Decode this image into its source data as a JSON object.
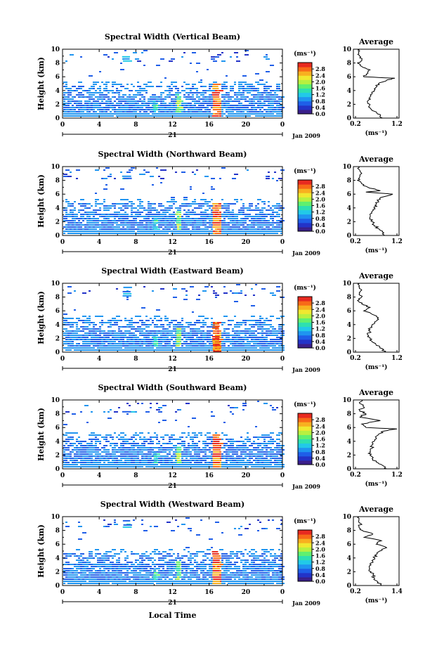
{
  "figure": {
    "xlabel": "Local Time",
    "time_ticks": [
      "0",
      "4",
      "8",
      "12",
      "16",
      "20",
      "0"
    ],
    "day_label": "21",
    "month_label": "Jan 2009",
    "height_label": "Height (km)",
    "height_ticks": [
      "0",
      "2",
      "4",
      "6",
      "8",
      "10"
    ],
    "unit_label": "(ms⁻¹)",
    "colorbar_ticks": [
      "0.0",
      "0.4",
      "0.8",
      "1.2",
      "1.6",
      "2.0",
      "2.4",
      "2.8"
    ],
    "average_title": "Average",
    "colors": {
      "scale": [
        "#3a1f8a",
        "#2333c8",
        "#1f5ee8",
        "#1f95f0",
        "#22c9e8",
        "#2ee0b0",
        "#60f070",
        "#b8f040",
        "#f0e830",
        "#f8b020",
        "#f86a18",
        "#e82a20"
      ],
      "white": "#ffffff",
      "line": "#000000"
    }
  },
  "chart_data": [
    {
      "type": "heatmap",
      "title": "Spectral Width (Vertical Beam)",
      "x_range_hours": [
        0,
        24
      ],
      "y_range_km": [
        0,
        10
      ],
      "colorbar_range": [
        0.0,
        3.2
      ],
      "features": [
        {
          "t_hours": [
            16.3,
            17.2
          ],
          "height_km": [
            0.2,
            5.0
          ],
          "value": "2.8+"
        },
        {
          "t_hours": [
            12.3,
            12.9
          ],
          "height_km": [
            1.0,
            3.5
          ],
          "value": "about 2.0"
        },
        {
          "t_hours": [
            9.8,
            10.3
          ],
          "height_km": [
            1.0,
            2.5
          ],
          "value": "about 1.6"
        },
        {
          "t_hours": [
            6.5,
            7.5
          ],
          "height_km": [
            8.2,
            9.0
          ],
          "value": "about 1.2"
        }
      ],
      "average_profile": {
        "title": "Average",
        "xlabel": "(ms⁻¹)",
        "x_ticks": [
          "0.2",
          "1.2"
        ],
        "x_range": [
          0.2,
          1.2
        ],
        "height_ticks": [
          "0",
          "2",
          "4",
          "6",
          "8",
          "10"
        ],
        "y_range_km": [
          0,
          10
        ],
        "height_km": [
          0.0,
          0.5,
          1.0,
          1.5,
          2.0,
          2.5,
          3.0,
          3.5,
          4.0,
          4.5,
          5.0,
          5.5,
          5.8,
          6.0,
          6.5,
          7.0,
          7.5,
          8.0,
          8.5,
          9.0,
          9.5,
          10.0
        ],
        "width_ms": [
          0.85,
          0.8,
          0.65,
          0.55,
          0.55,
          0.5,
          0.55,
          0.6,
          0.65,
          0.7,
          0.75,
          0.95,
          1.15,
          0.4,
          0.5,
          0.55,
          0.35,
          0.25,
          0.35,
          0.3,
          0.28,
          0.3
        ]
      }
    },
    {
      "type": "heatmap",
      "title": "Spectral Width (Northward Beam)",
      "x_range_hours": [
        0,
        24
      ],
      "y_range_km": [
        0,
        10
      ],
      "colorbar_range": [
        0.0,
        3.2
      ],
      "features": [
        {
          "t_hours": [
            16.3,
            17.2
          ],
          "height_km": [
            0.2,
            5.0
          ],
          "value": "2.8+"
        },
        {
          "t_hours": [
            12.3,
            12.9
          ],
          "height_km": [
            1.0,
            3.5
          ],
          "value": "about 2.0"
        },
        {
          "t_hours": [
            9.8,
            10.3
          ],
          "height_km": [
            1.0,
            2.5
          ],
          "value": "about 1.6"
        },
        {
          "t_hours": [
            6.5,
            7.5
          ],
          "height_km": [
            8.2,
            9.0
          ],
          "value": "about 1.2"
        }
      ],
      "average_profile": {
        "title": "Average",
        "xlabel": "(ms⁻¹)",
        "x_ticks": [
          "0.2",
          "1.2"
        ],
        "x_range": [
          0.2,
          1.2
        ],
        "height_ticks": [
          "0",
          "2",
          "4",
          "6",
          "8",
          "10"
        ],
        "y_range_km": [
          0,
          10
        ],
        "height_km": [
          0.0,
          0.5,
          1.0,
          1.5,
          2.0,
          2.5,
          3.0,
          3.5,
          4.0,
          4.5,
          5.0,
          5.5,
          6.0,
          6.3,
          6.5,
          7.0,
          7.5,
          8.0,
          8.5,
          9.0,
          9.5,
          10.0
        ],
        "width_ms": [
          0.9,
          0.85,
          0.75,
          0.65,
          0.6,
          0.55,
          0.55,
          0.6,
          0.65,
          0.7,
          0.75,
          0.8,
          1.1,
          0.45,
          0.8,
          0.5,
          0.35,
          0.25,
          0.3,
          0.35,
          0.3,
          0.28
        ]
      }
    },
    {
      "type": "heatmap",
      "title": "Spectral Width (Eastward Beam)",
      "x_range_hours": [
        0,
        24
      ],
      "y_range_km": [
        0,
        10
      ],
      "colorbar_range": [
        0.0,
        3.2
      ],
      "features": [
        {
          "t_hours": [
            16.3,
            17.2
          ],
          "height_km": [
            0.2,
            4.5
          ],
          "value": "2.8+"
        },
        {
          "t_hours": [
            12.3,
            12.9
          ],
          "height_km": [
            1.0,
            3.5
          ],
          "value": "about 2.0"
        },
        {
          "t_hours": [
            9.8,
            10.3
          ],
          "height_km": [
            1.0,
            2.5
          ],
          "value": "about 1.6"
        },
        {
          "t_hours": [
            6.5,
            7.5
          ],
          "height_km": [
            8.2,
            9.5
          ],
          "value": "about 1.2"
        }
      ],
      "average_profile": {
        "title": "Average",
        "xlabel": "(ms⁻¹)",
        "x_ticks": [
          "0.2",
          "1.2"
        ],
        "x_range": [
          0.2,
          1.2
        ],
        "height_ticks": [
          "0",
          "2",
          "4",
          "6",
          "8",
          "10"
        ],
        "y_range_km": [
          0,
          10
        ],
        "height_km": [
          0.0,
          0.5,
          1.0,
          1.5,
          2.0,
          2.5,
          3.0,
          3.5,
          4.0,
          4.5,
          5.0,
          5.5,
          6.0,
          6.5,
          7.0,
          7.5,
          8.0,
          8.5,
          9.0,
          9.5,
          10.0
        ],
        "width_ms": [
          0.9,
          0.85,
          0.7,
          0.6,
          0.55,
          0.5,
          0.55,
          0.55,
          0.6,
          0.7,
          0.75,
          0.6,
          0.4,
          0.55,
          0.35,
          0.25,
          0.35,
          0.3,
          0.35,
          0.28,
          0.3
        ]
      }
    },
    {
      "type": "heatmap",
      "title": "Spectral Width (Southward Beam)",
      "x_range_hours": [
        0,
        24
      ],
      "y_range_km": [
        0,
        10
      ],
      "colorbar_range": [
        0.0,
        3.2
      ],
      "features": [
        {
          "t_hours": [
            16.3,
            17.2
          ],
          "height_km": [
            0.2,
            5.0
          ],
          "value": "2.8+"
        },
        {
          "t_hours": [
            12.3,
            12.9
          ],
          "height_km": [
            1.0,
            3.5
          ],
          "value": "about 2.0"
        },
        {
          "t_hours": [
            9.8,
            10.3
          ],
          "height_km": [
            1.0,
            2.5
          ],
          "value": "about 1.6"
        },
        {
          "t_hours": [
            6.5,
            7.5
          ],
          "height_km": [
            8.2,
            9.0
          ],
          "value": "about 1.2"
        }
      ],
      "average_profile": {
        "title": "Average",
        "xlabel": "(ms⁻¹)",
        "x_ticks": [
          "0.2",
          "1.2"
        ],
        "x_range": [
          0.2,
          1.2
        ],
        "height_ticks": [
          "0",
          "2",
          "4",
          "6",
          "8",
          "10"
        ],
        "y_range_km": [
          0,
          10
        ],
        "height_km": [
          0.0,
          0.5,
          1.0,
          1.5,
          2.0,
          2.5,
          3.0,
          3.5,
          4.0,
          4.5,
          5.0,
          5.5,
          5.8,
          6.0,
          6.5,
          7.0,
          7.5,
          8.0,
          8.5,
          9.0,
          9.5,
          10.0
        ],
        "width_ms": [
          0.95,
          0.85,
          0.7,
          0.6,
          0.55,
          0.55,
          0.6,
          0.6,
          0.65,
          0.7,
          0.75,
          0.9,
          1.2,
          0.45,
          0.35,
          0.8,
          0.3,
          0.45,
          0.3,
          0.4,
          0.3,
          0.35
        ]
      }
    },
    {
      "type": "heatmap",
      "title": "Spectral Width (Westward Beam)",
      "x_range_hours": [
        0,
        24
      ],
      "y_range_km": [
        0,
        10
      ],
      "colorbar_range": [
        0.0,
        3.2
      ],
      "features": [
        {
          "t_hours": [
            16.3,
            17.2
          ],
          "height_km": [
            0.2,
            5.0
          ],
          "value": "2.8+"
        },
        {
          "t_hours": [
            12.3,
            12.9
          ],
          "height_km": [
            1.0,
            3.5
          ],
          "value": "about 2.0"
        },
        {
          "t_hours": [
            9.8,
            10.3
          ],
          "height_km": [
            1.0,
            2.5
          ],
          "value": "about 1.6"
        },
        {
          "t_hours": [
            6.5,
            7.5
          ],
          "height_km": [
            8.5,
            9.5
          ],
          "value": "about 1.2"
        }
      ],
      "average_profile": {
        "title": "Average",
        "xlabel": "(ms⁻¹)",
        "x_ticks": [
          "0.2",
          "1.4"
        ],
        "x_range": [
          0.2,
          1.4
        ],
        "height_ticks": [
          "0",
          "2",
          "4",
          "6",
          "8",
          "10"
        ],
        "y_range_km": [
          0,
          10
        ],
        "height_km": [
          0.0,
          0.5,
          1.0,
          1.5,
          2.0,
          2.5,
          3.0,
          3.5,
          4.0,
          4.5,
          5.0,
          5.5,
          6.0,
          6.5,
          7.0,
          7.5,
          8.0,
          8.5,
          9.0,
          9.5,
          10.0
        ],
        "width_ms": [
          0.95,
          0.85,
          0.75,
          0.7,
          0.65,
          0.6,
          0.65,
          0.7,
          0.75,
          0.8,
          0.9,
          1.1,
          0.8,
          0.95,
          0.45,
          0.7,
          0.4,
          0.3,
          0.35,
          0.3,
          0.3
        ]
      }
    }
  ]
}
